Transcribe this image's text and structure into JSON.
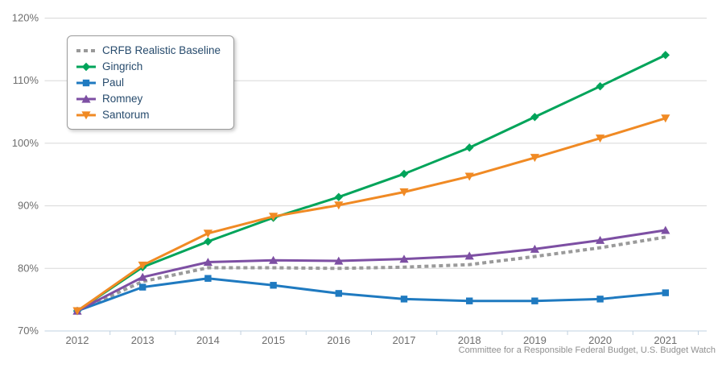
{
  "chart_data": {
    "type": "line",
    "title": "",
    "categories": [
      "2012",
      "2013",
      "2014",
      "2015",
      "2016",
      "2017",
      "2018",
      "2019",
      "2020",
      "2021"
    ],
    "series": [
      {
        "name": "CRFB Realistic Baseline",
        "color": "#9a9a9a",
        "line_style": "dashed",
        "marker": "none",
        "values": [
          73.2,
          77.9,
          80.1,
          80.1,
          80.0,
          80.2,
          80.6,
          81.9,
          83.3,
          85.0
        ]
      },
      {
        "name": "Gingrich",
        "color": "#00a45a",
        "line_style": "solid",
        "marker": "diamond",
        "values": [
          73.2,
          80.2,
          84.3,
          88.1,
          91.4,
          95.1,
          99.3,
          104.2,
          109.1,
          114.1
        ]
      },
      {
        "name": "Paul",
        "color": "#1f7ac0",
        "line_style": "solid",
        "marker": "square",
        "values": [
          73.2,
          77.0,
          78.4,
          77.3,
          76.0,
          75.1,
          74.8,
          74.8,
          75.1,
          76.1
        ]
      },
      {
        "name": "Romney",
        "color": "#7d4fa3",
        "line_style": "solid",
        "marker": "triangle",
        "values": [
          73.2,
          78.6,
          81.0,
          81.3,
          81.2,
          81.5,
          82.0,
          83.1,
          84.5,
          86.1
        ]
      },
      {
        "name": "Santorum",
        "color": "#f08a24",
        "line_style": "solid",
        "marker": "triangle-down",
        "values": [
          73.2,
          80.5,
          85.6,
          88.3,
          90.1,
          92.2,
          94.7,
          97.7,
          100.8,
          104.0
        ]
      }
    ],
    "ylim": [
      70,
      120
    ],
    "yticks": [
      "70%",
      "80%",
      "90%",
      "100%",
      "110%",
      "120%"
    ],
    "ylabel_suffix": "%",
    "grid": true,
    "legend_position": "top-left",
    "credits": "Committee for a Responsible Federal Budget, U.S. Budget Watch",
    "colors": {
      "gridline": "#d8d8d8",
      "axis_line": "#c0d0e0",
      "axis_label": "#6e6e6e",
      "legend_text": "#274b6d",
      "credits_text": "#909090"
    }
  }
}
